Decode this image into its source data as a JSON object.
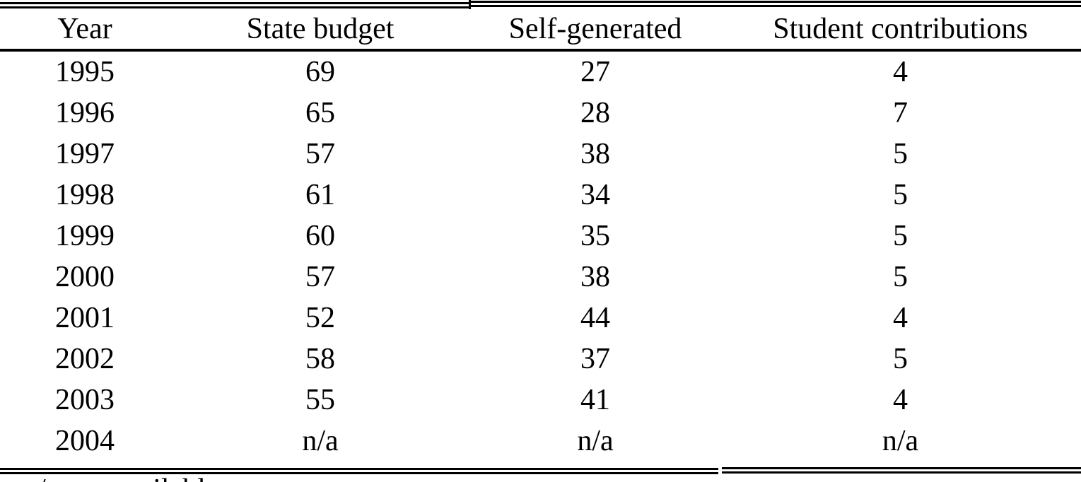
{
  "table": {
    "columns": [
      "Year",
      "State budget",
      "Self-generated",
      "Student contributions"
    ],
    "rows": [
      [
        "1995",
        "69",
        "27",
        "4"
      ],
      [
        "1996",
        "65",
        "28",
        "7"
      ],
      [
        "1997",
        "57",
        "38",
        "5"
      ],
      [
        "1998",
        "61",
        "34",
        "5"
      ],
      [
        "1999",
        "60",
        "35",
        "5"
      ],
      [
        "2000",
        "57",
        "38",
        "5"
      ],
      [
        "2001",
        "52",
        "44",
        "4"
      ],
      [
        "2002",
        "58",
        "37",
        "5"
      ],
      [
        "2003",
        "55",
        "41",
        "4"
      ],
      [
        "2004",
        "n/a",
        "n/a",
        "n/a"
      ]
    ]
  },
  "footnote": "n/a not available",
  "colors": {
    "text": "#000000",
    "background": "#ffffff",
    "rule": "#000000"
  }
}
